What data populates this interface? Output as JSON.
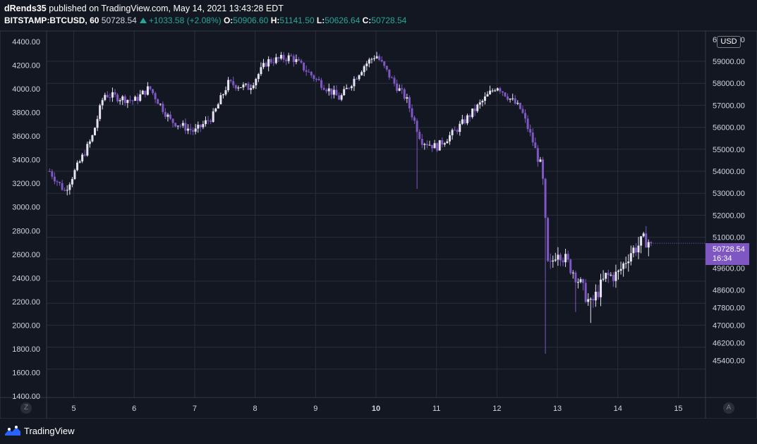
{
  "header": {
    "author": "dRends35",
    "published_text": "published on TradingView.com, May 14, 2021 13:43:28 EDT",
    "symbol": "BITSTAMP:BTCUSD, 60",
    "last": "50728.54",
    "change": "+1033.58 (+2.08%)",
    "o_label": "O:",
    "o_value": "50906.60",
    "h_label": "H:",
    "h_value": "51141.50",
    "l_label": "L:",
    "l_value": "50626.64",
    "c_label": "C:",
    "c_value": "50728.54"
  },
  "currency_badge": "USD",
  "price_tag": {
    "price": "50728.54",
    "countdown": "16:34"
  },
  "scale_buttons": {
    "left": "Z",
    "right": "A"
  },
  "brand": "TradingView",
  "colors": {
    "background": "#131722",
    "grid": "#2a2e39",
    "up_candle": "#e6e3f2",
    "down_candle": "#7e57c2",
    "accent": "#7e57c2",
    "text": "#d1d4dc",
    "positive": "#26a69a"
  },
  "chart_data": {
    "type": "candlestick",
    "symbol": "BITSTAMP:BTCUSD",
    "interval": "60",
    "x_ticks": [
      "5",
      "6",
      "7",
      "8",
      "9",
      "10",
      "11",
      "12",
      "13",
      "14",
      "15"
    ],
    "x_tick_values": [
      5,
      6,
      7,
      8,
      9,
      10,
      11,
      12,
      13,
      14,
      15
    ],
    "x_range": [
      4.55,
      15.45
    ],
    "bold_tick": "10",
    "left_axis": {
      "ticks": [
        "4400.00",
        "4200.00",
        "4000.00",
        "3800.00",
        "3600.00",
        "3400.00",
        "3200.00",
        "3000.00",
        "2800.00",
        "2600.00",
        "2400.00",
        "2200.00",
        "2000.00",
        "1800.00",
        "1600.00",
        "1400.00"
      ],
      "tick_values": [
        4400,
        4200,
        4000,
        3800,
        3600,
        3400,
        3200,
        3000,
        2800,
        2600,
        2400,
        2200,
        2000,
        1800,
        1600,
        1400
      ],
      "range": [
        1400,
        4400
      ]
    },
    "right_axis": {
      "ticks": [
        "60000.00",
        "59000.00",
        "58000.00",
        "57000.00",
        "56000.00",
        "55000.00",
        "54000.00",
        "53000.00",
        "52000.00",
        "51000.00",
        "49600.00",
        "48600.00",
        "47800.00",
        "47000.00",
        "46200.00",
        "45400.00"
      ],
      "tick_values": [
        60000,
        59000,
        58000,
        57000,
        56000,
        55000,
        54000,
        53000,
        52000,
        51000,
        49600,
        48600,
        47800,
        47000,
        46200,
        45400
      ],
      "grid_values": [
        59000,
        58000,
        57000,
        56000,
        55000,
        54000,
        53000,
        52000,
        51000,
        50000,
        49000,
        48000,
        47000,
        46000,
        45000
      ]
    },
    "key_points": [
      {
        "day": 4.6,
        "price": 54000
      },
      {
        "day": 4.85,
        "price": 53100
      },
      {
        "day": 5.3,
        "price": 55500
      },
      {
        "day": 5.5,
        "price": 57500
      },
      {
        "day": 6.0,
        "price": 57200
      },
      {
        "day": 6.25,
        "price": 57800
      },
      {
        "day": 6.6,
        "price": 56300
      },
      {
        "day": 7.0,
        "price": 55800
      },
      {
        "day": 7.3,
        "price": 56500
      },
      {
        "day": 7.55,
        "price": 58000
      },
      {
        "day": 7.9,
        "price": 57800
      },
      {
        "day": 8.2,
        "price": 59000
      },
      {
        "day": 8.6,
        "price": 59200
      },
      {
        "day": 9.0,
        "price": 58200
      },
      {
        "day": 9.4,
        "price": 57300
      },
      {
        "day": 9.8,
        "price": 58800
      },
      {
        "day": 10.0,
        "price": 59300
      },
      {
        "day": 10.3,
        "price": 58000
      },
      {
        "day": 10.5,
        "price": 57300
      },
      {
        "day": 10.75,
        "price": 55400
      },
      {
        "day": 11.0,
        "price": 55100
      },
      {
        "day": 11.3,
        "price": 55800
      },
      {
        "day": 11.7,
        "price": 57000
      },
      {
        "day": 12.0,
        "price": 57900
      },
      {
        "day": 12.4,
        "price": 56800
      },
      {
        "day": 12.6,
        "price": 55300
      },
      {
        "day": 12.75,
        "price": 53900
      },
      {
        "day": 12.85,
        "price": 49400
      },
      {
        "day": 13.0,
        "price": 50500
      },
      {
        "day": 13.3,
        "price": 49300
      },
      {
        "day": 13.55,
        "price": 47900
      },
      {
        "day": 13.8,
        "price": 49200
      },
      {
        "day": 14.0,
        "price": 49300
      },
      {
        "day": 14.2,
        "price": 50300
      },
      {
        "day": 14.45,
        "price": 50900
      },
      {
        "day": 14.55,
        "price": 50728.54
      }
    ],
    "notable_wicks": [
      {
        "day": 10.68,
        "low": 53200
      },
      {
        "day": 12.8,
        "low": 45700
      },
      {
        "day": 13.3,
        "low": 47600
      },
      {
        "day": 13.55,
        "low": 47100
      }
    ],
    "last_price": 50728.54,
    "grid": true
  }
}
